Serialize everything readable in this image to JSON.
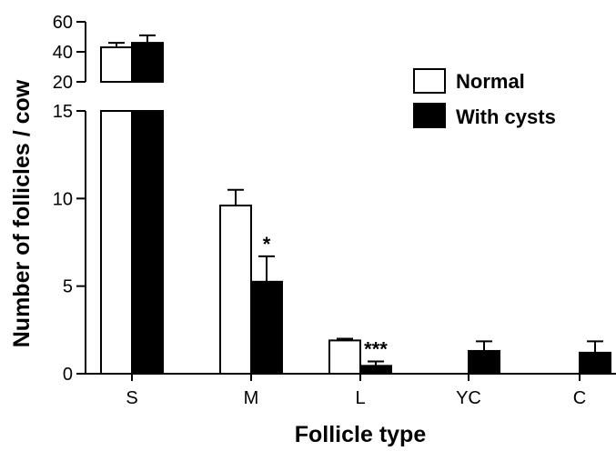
{
  "chart_data": {
    "type": "bar",
    "xlabel": "Follicle type",
    "ylabel": "Number of follicles / cow",
    "categories": [
      "S",
      "M",
      "L",
      "YC",
      "C"
    ],
    "series": [
      {
        "name": "Normal",
        "fill": "#ffffff",
        "values": [
          43,
          9.6,
          1.9,
          0,
          0
        ],
        "errors": [
          3,
          0.9,
          0.1,
          0,
          0
        ]
      },
      {
        "name": "With cysts",
        "fill": "#000000",
        "values": [
          46,
          5.25,
          0.45,
          1.3,
          1.2
        ],
        "errors": [
          5,
          1.45,
          0.25,
          0.55,
          0.65
        ]
      }
    ],
    "significance": [
      "",
      "*",
      "***",
      "",
      ""
    ],
    "y_axis": {
      "broken": true,
      "lower_range": [
        0,
        15
      ],
      "lower_ticks": [
        "0",
        "5",
        "10",
        "15"
      ],
      "upper_range": [
        20,
        60
      ],
      "upper_ticks": [
        "20",
        "40",
        "60"
      ]
    },
    "legend_position": "top-right",
    "grid": false
  }
}
